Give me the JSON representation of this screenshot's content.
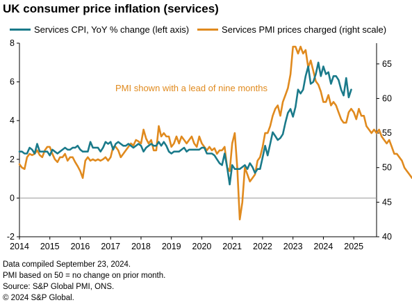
{
  "chart_data": {
    "type": "line",
    "title": "UK consumer price inflation (services)",
    "annotation": "PMI shown with a lead of nine months",
    "x_ticks": [
      "2014",
      "2015",
      "2016",
      "2017",
      "2018",
      "2019",
      "2020",
      "2021",
      "2022",
      "2023",
      "2024",
      "2025"
    ],
    "xlim": [
      "2014-01",
      "2025-10"
    ],
    "left_axis": {
      "ylim": [
        -2,
        8
      ],
      "ticks": [
        "-2",
        "0",
        "2",
        "4",
        "6",
        "8"
      ]
    },
    "right_axis": {
      "ylim": [
        40,
        68
      ],
      "ticks": [
        "40",
        "45",
        "50",
        "55",
        "60",
        "65"
      ]
    },
    "grid": false,
    "legend_position": "top",
    "colors": {
      "cpi": "#1a7a8a",
      "pmi": "#e08a1e",
      "annotation": "#e08a1e"
    },
    "series": [
      {
        "name": "Services CPI, YoY % change (left axis)",
        "axis": "left",
        "start": "2014-01",
        "values": [
          2.4,
          2.4,
          2.3,
          2.3,
          2.6,
          2.5,
          2.3,
          2.8,
          2.4,
          2.4,
          2.4,
          2.4,
          2.2,
          2.5,
          2.4,
          2.3,
          2.4,
          2.5,
          2.6,
          2.5,
          2.5,
          2.6,
          2.6,
          2.7,
          2.5,
          2.4,
          2.4,
          2.4,
          2.9,
          2.6,
          2.6,
          2.6,
          2.4,
          2.6,
          2.9,
          2.8,
          2.9,
          2.5,
          2.8,
          2.9,
          2.8,
          2.7,
          2.7,
          2.8,
          2.7,
          2.6,
          2.7,
          2.8,
          2.7,
          2.4,
          2.6,
          2.7,
          2.8,
          2.7,
          2.7,
          2.9,
          2.7,
          2.9,
          2.7,
          2.4,
          2.3,
          2.4,
          2.4,
          2.4,
          2.5,
          2.6,
          2.4,
          2.5,
          2.5,
          2.5,
          2.5,
          2.5,
          2.6,
          2.6,
          2.3,
          2.3,
          2.3,
          2.2,
          2.0,
          1.8,
          1.7,
          2.3,
          1.6,
          0.7,
          1.7,
          1.5,
          1.5,
          1.5,
          1.6,
          1.7,
          1.5,
          1.8,
          1.6,
          1.3,
          1.5,
          1.5,
          2.1,
          2.7,
          2.2,
          2.8,
          3.4,
          3.2,
          3.0,
          3.1,
          3.3,
          3.9,
          4.4,
          4.6,
          4.2,
          4.7,
          5.6,
          5.4,
          5.6,
          6.3,
          6.8,
          5.9,
          6.0,
          6.4,
          7.0,
          6.3,
          6.8,
          6.4,
          6.5,
          5.9,
          6.3,
          6.3,
          6.1,
          5.6,
          5.3,
          6.2,
          5.2,
          5.6
        ]
      },
      {
        "name": "Services PMI prices charged (right scale)",
        "axis": "right",
        "start": "2014-01",
        "values": [
          50.5,
          50.0,
          49.8,
          51.5,
          52.0,
          51.8,
          52.0,
          52.5,
          51.8,
          51.5,
          52.5,
          53.0,
          53.0,
          52.0,
          51.2,
          50.8,
          51.5,
          51.5,
          52.0,
          51.0,
          51.5,
          51.5,
          50.8,
          50.2,
          49.5,
          48.5,
          51.0,
          51.5,
          51.0,
          51.2,
          51.0,
          51.2,
          51.0,
          51.2,
          51.5,
          51.0,
          51.5,
          53.0,
          53.0,
          52.5,
          51.5,
          52.0,
          52.5,
          53.0,
          53.5,
          53.2,
          54.0,
          53.8,
          53.5,
          55.5,
          54.2,
          53.5,
          54.0,
          52.5,
          52.5,
          56.0,
          54.5,
          55.0,
          54.5,
          54.5,
          53.0,
          53.5,
          54.5,
          53.5,
          54.5,
          54.0,
          53.5,
          54.0,
          54.5,
          53.5,
          53.0,
          54.5,
          53.5,
          53.0,
          52.5,
          53.0,
          52.5,
          52.8,
          52.0,
          52.5,
          52.5,
          53.0,
          50.0,
          49.5,
          53.5,
          55.0,
          50.0,
          42.5,
          45.0,
          50.0,
          49.0,
          48.0,
          48.5,
          49.0,
          51.0,
          51.5,
          53.0,
          55.0,
          55.0,
          56.0,
          57.5,
          58.5,
          59.0,
          57.5,
          59.5,
          60.5,
          61.5,
          63.5,
          67.5,
          67.5,
          66.5,
          67.5,
          66.5,
          67.0,
          64.5,
          65.5,
          64.0,
          62.5,
          62.0,
          61.0,
          59.5,
          59.5,
          60.5,
          59.0,
          59.5,
          59.0,
          58.0,
          57.0,
          56.5,
          56.5,
          58.0,
          58.5,
          58.0,
          57.0,
          58.5,
          57.5,
          57.5,
          56.0,
          55.5,
          55.0,
          55.5,
          55.0,
          55.5,
          54.5,
          54.0,
          53.5,
          54.0,
          53.0,
          52.0,
          52.0,
          51.5,
          51.0,
          50.0,
          49.5,
          49.0,
          48.5
        ]
      }
    ]
  },
  "notes": [
    "Data compiled September 23, 2024.",
    "PMI based on 50 = no change on prior month.",
    "Source: S&P Global PMI, ONS.",
    "© 2024 S&P Global."
  ]
}
